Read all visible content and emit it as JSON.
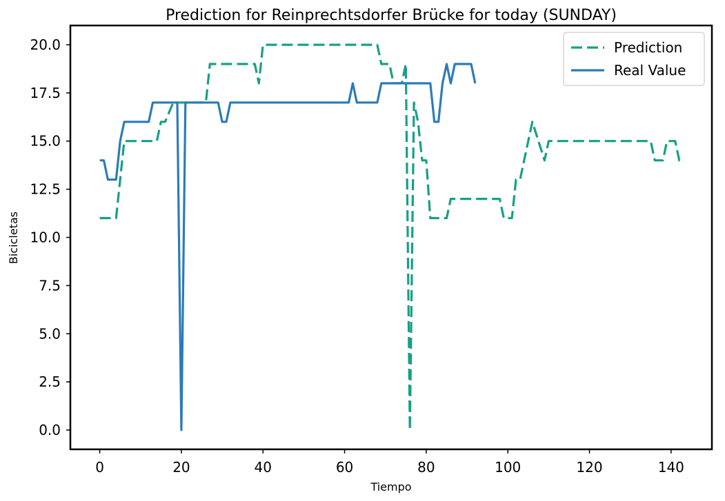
{
  "chart_data": {
    "type": "line",
    "title": "Prediction for Reinprechtsdorfer Brücke for today (SUNDAY)",
    "xlabel": "Tiempo",
    "ylabel": "Bicicletas",
    "xlim": [
      -7.2,
      150
    ],
    "ylim": [
      -1,
      21
    ],
    "xticks": [
      0,
      20,
      40,
      60,
      80,
      100,
      120,
      140
    ],
    "xtick_labels": [
      "0",
      "20",
      "40",
      "60",
      "80",
      "100",
      "120",
      "140"
    ],
    "yticks": [
      0,
      2.5,
      5,
      7.5,
      10,
      12.5,
      15,
      17.5,
      20
    ],
    "ytick_labels": [
      "0.0",
      "2.5",
      "5.0",
      "7.5",
      "10.0",
      "12.5",
      "15.0",
      "17.5",
      "20.0"
    ],
    "grid": false,
    "legend_position": "top-right",
    "series": [
      {
        "name": "Prediction",
        "color": "#16a085",
        "style": "dashed",
        "x": [
          0,
          4,
          5,
          6,
          14,
          15,
          16,
          18,
          19,
          20,
          21,
          26,
          27,
          38,
          39,
          40,
          68,
          69,
          71,
          72,
          74,
          75,
          76,
          77,
          78,
          79,
          80,
          81,
          85,
          86,
          98,
          99,
          101,
          102,
          103,
          106,
          109,
          110,
          135,
          136,
          138,
          139,
          141,
          142,
          143
        ],
        "y": [
          11,
          11,
          13,
          15,
          15,
          16,
          16,
          17,
          17,
          17,
          17,
          17,
          19,
          19,
          18,
          20,
          20,
          19,
          19,
          18,
          18,
          19,
          0,
          17,
          16,
          14,
          14,
          11,
          11,
          12,
          12,
          11,
          11,
          13,
          13,
          16,
          14,
          15,
          15,
          14,
          14,
          15,
          15,
          14,
          14
        ]
      },
      {
        "name": "Real Value",
        "color": "#2b7bba",
        "style": "solid",
        "x": [
          0,
          1,
          2,
          3,
          4,
          5,
          6,
          12,
          13,
          19,
          20,
          21,
          29,
          30,
          31,
          32,
          61,
          62,
          63,
          68,
          69,
          81,
          82,
          83,
          84,
          85,
          86,
          87,
          91,
          92
        ],
        "y": [
          14,
          14,
          13,
          13,
          13,
          15,
          16,
          16,
          17,
          17,
          0,
          17,
          17,
          16,
          16,
          17,
          17,
          18,
          17,
          17,
          18,
          18,
          16,
          16,
          18,
          19,
          18,
          19,
          19,
          18
        ]
      }
    ]
  }
}
